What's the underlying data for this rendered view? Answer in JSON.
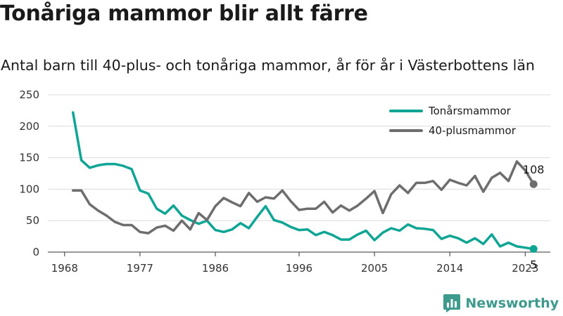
{
  "header": {
    "title": "Tonåriga mammor blir allt färre",
    "subtitle": "Antal barn till 40-plus- och tonåriga mammor, år för år i Västerbottens län"
  },
  "brand": {
    "name": "Newsworthy"
  },
  "colors": {
    "teen": "#0fa595",
    "forty": "#6d6d70",
    "grid": "#dcdcdc",
    "brand": "#3d9a8c"
  },
  "chart_data": {
    "type": "line",
    "x_ticks": [
      "1968",
      "1977",
      "1986",
      "1996",
      "2005",
      "2014",
      "2023"
    ],
    "y_ticks": [
      "0",
      "50",
      "100",
      "150",
      "200",
      "250"
    ],
    "xlim": [
      1966,
      2026
    ],
    "ylim": [
      0,
      250
    ],
    "grid": true,
    "legend_position": "top-right",
    "series": [
      {
        "name": "Tonårsmammor",
        "color": "#0fa595",
        "end_label": "5",
        "x": [
          1969,
          1970,
          1971,
          1972,
          1973,
          1974,
          1975,
          1976,
          1977,
          1978,
          1979,
          1980,
          1981,
          1982,
          1983,
          1984,
          1985,
          1986,
          1987,
          1988,
          1989,
          1990,
          1991,
          1992,
          1993,
          1994,
          1995,
          1996,
          1997,
          1998,
          1999,
          2000,
          2001,
          2002,
          2003,
          2004,
          2005,
          2006,
          2007,
          2008,
          2009,
          2010,
          2011,
          2012,
          2013,
          2014,
          2015,
          2016,
          2017,
          2018,
          2019,
          2020,
          2021,
          2022,
          2023,
          2024
        ],
        "y": [
          222,
          146,
          134,
          138,
          140,
          140,
          137,
          132,
          98,
          93,
          69,
          61,
          74,
          58,
          51,
          45,
          50,
          35,
          32,
          36,
          46,
          38,
          56,
          73,
          51,
          47,
          40,
          35,
          36,
          27,
          32,
          27,
          20,
          20,
          28,
          34,
          19,
          31,
          38,
          34,
          44,
          38,
          37,
          35,
          21,
          26,
          22,
          15,
          22,
          13,
          28,
          9,
          15,
          9,
          7,
          5
        ]
      },
      {
        "name": "40-plusmammor",
        "color": "#6d6d70",
        "end_label": "108",
        "x": [
          1969,
          1970,
          1971,
          1972,
          1973,
          1974,
          1975,
          1976,
          1977,
          1978,
          1979,
          1980,
          1981,
          1982,
          1983,
          1984,
          1985,
          1986,
          1987,
          1988,
          1989,
          1990,
          1991,
          1992,
          1993,
          1994,
          1995,
          1996,
          1997,
          1998,
          1999,
          2000,
          2001,
          2002,
          2003,
          2004,
          2005,
          2006,
          2007,
          2008,
          2009,
          2010,
          2011,
          2012,
          2013,
          2014,
          2015,
          2016,
          2017,
          2018,
          2019,
          2020,
          2021,
          2022,
          2023,
          2024
        ],
        "y": [
          98,
          98,
          76,
          66,
          58,
          48,
          43,
          43,
          32,
          30,
          39,
          42,
          34,
          50,
          36,
          62,
          51,
          73,
          86,
          79,
          73,
          94,
          80,
          87,
          85,
          98,
          81,
          67,
          69,
          69,
          80,
          63,
          74,
          66,
          74,
          85,
          97,
          62,
          92,
          106,
          94,
          110,
          110,
          113,
          99,
          115,
          110,
          106,
          121,
          96,
          118,
          126,
          113,
          144,
          130,
          108
        ]
      }
    ]
  }
}
